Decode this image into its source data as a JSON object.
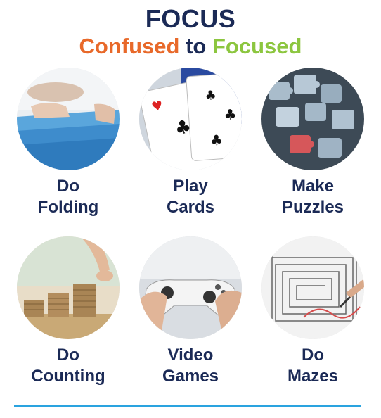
{
  "header": {
    "title": "FOCUS",
    "subtitle_confused": "Confused",
    "subtitle_to": "to",
    "subtitle_focused": "Focused"
  },
  "colors": {
    "title": "#1b2a56",
    "confused": "#e8692a",
    "focused": "#8cc63f",
    "rule": "#2aa3df"
  },
  "activities": [
    {
      "line1": "Do",
      "line2": "Folding",
      "image": "folding-towels-photo"
    },
    {
      "line1": "Play",
      "line2": "Cards",
      "image": "playing-cards-photo"
    },
    {
      "line1": "Make",
      "line2": "Puzzles",
      "image": "jigsaw-puzzle-photo"
    },
    {
      "line1": "Do",
      "line2": "Counting",
      "image": "coin-stacks-photo"
    },
    {
      "line1": "Video",
      "line2": "Games",
      "image": "game-controller-photo"
    },
    {
      "line1": "Do",
      "line2": "Mazes",
      "image": "maze-drawing-photo"
    }
  ]
}
